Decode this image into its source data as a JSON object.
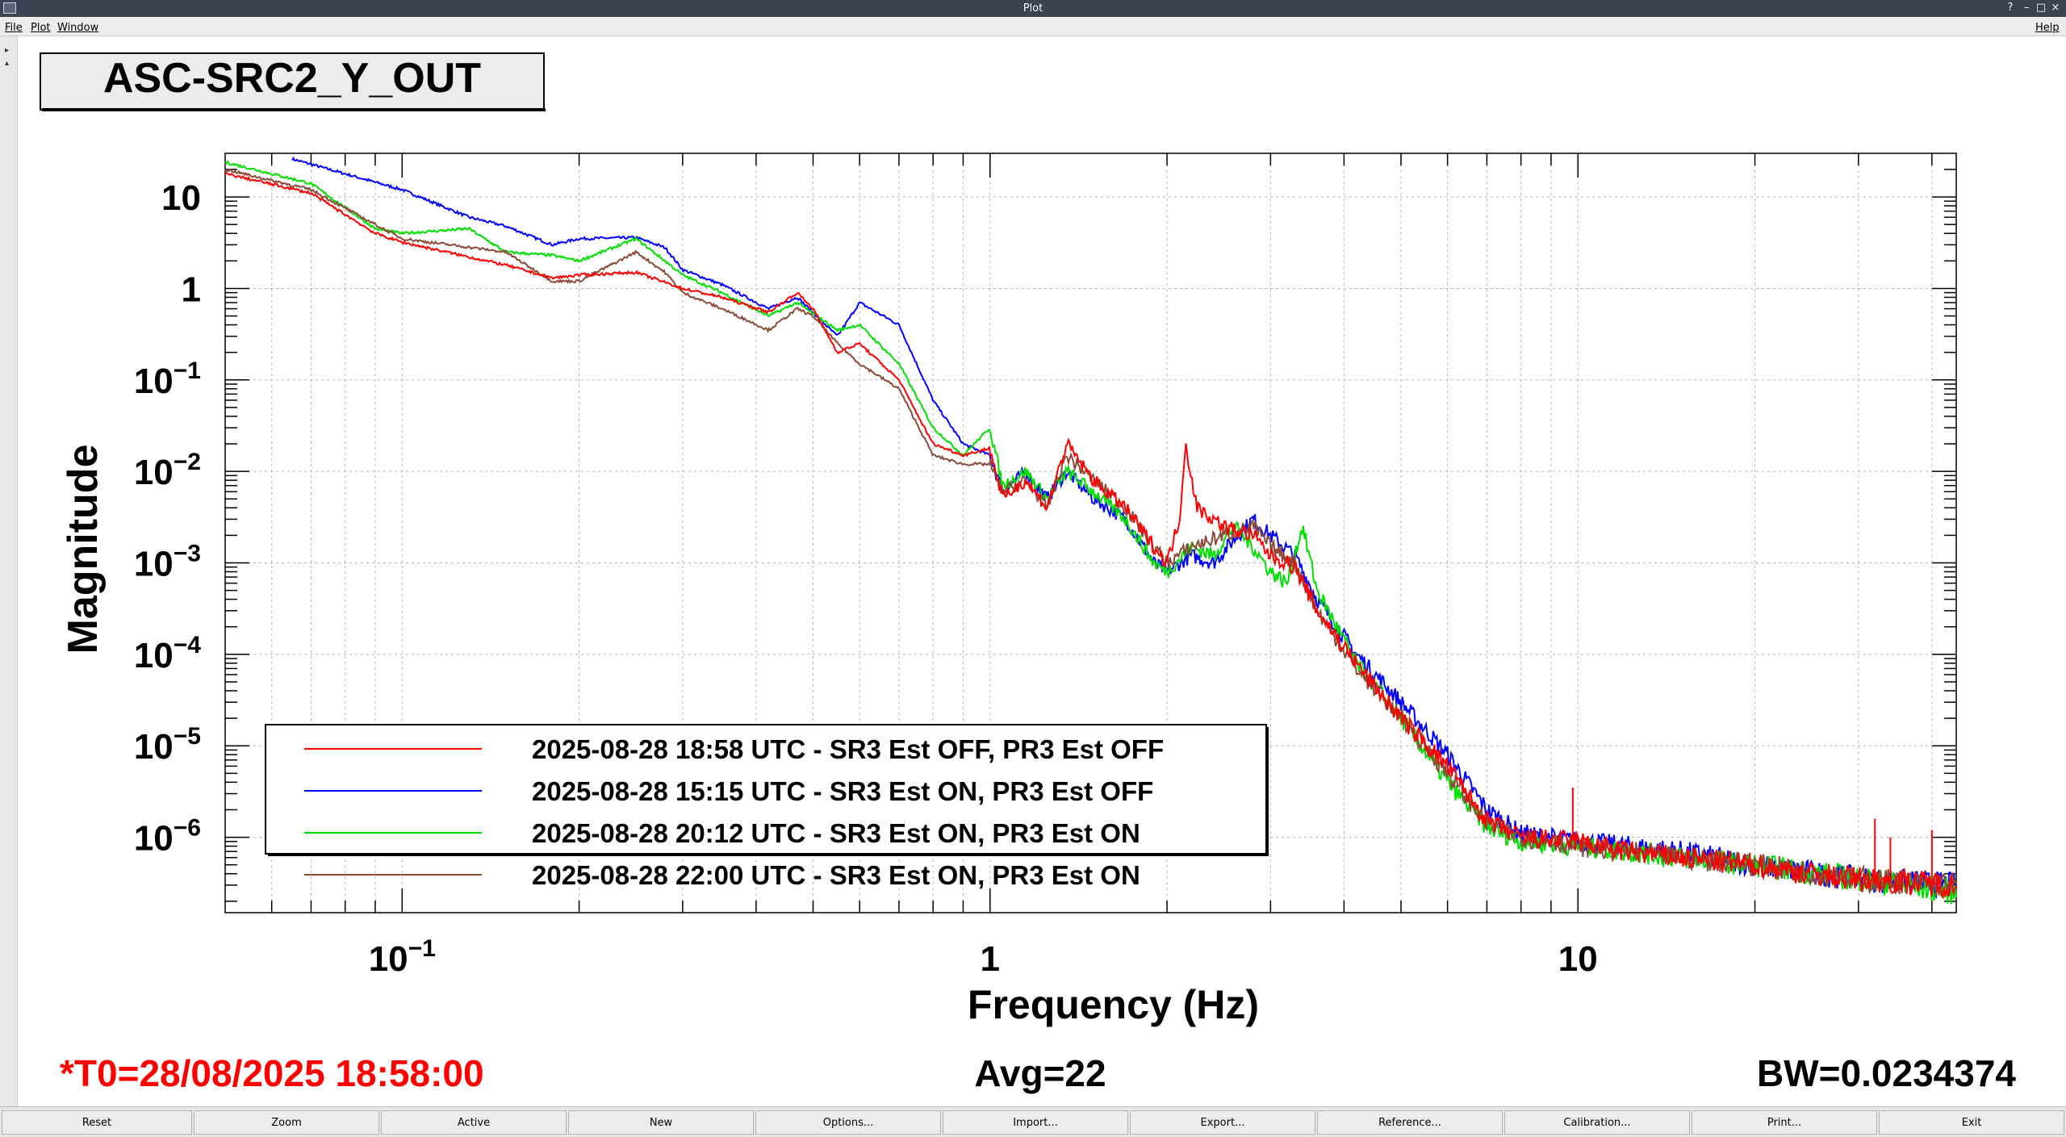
{
  "window": {
    "title": "Plot",
    "controls": [
      "?",
      "–",
      "□",
      "×"
    ]
  },
  "menu": {
    "items": [
      "File",
      "Plot",
      "Window"
    ],
    "help": "Help"
  },
  "panel": {
    "title": "ASC-SRC2_Y_OUT",
    "t0": "*T0=28/08/2025 18:58:00",
    "avg": "Avg=22",
    "bw": "BW=0.0234374"
  },
  "colors": {
    "red": "#ff0000",
    "blue": "#0000ff",
    "green": "#00e000",
    "brown": "#8b4a3a",
    "t0_text": "#ff0000"
  },
  "toolbar": {
    "buttons": [
      "Reset",
      "Zoom",
      "Active",
      "New",
      "Options...",
      "Import...",
      "Export...",
      "Reference...",
      "Calibration...",
      "Print...",
      "Exit"
    ]
  },
  "chart_data": {
    "type": "line",
    "title": "",
    "xlabel": "Frequency (Hz)",
    "ylabel": "Magnitude",
    "xscale": "log",
    "yscale": "log",
    "xlim": [
      0.05,
      44
    ],
    "ylim": [
      1.5e-07,
      30
    ],
    "grid": true,
    "legend_position": "lower-left",
    "x_tick_labels": [
      {
        "value": 0.1,
        "base": "10",
        "exp": "−1"
      },
      {
        "value": 1,
        "base": "1",
        "exp": ""
      },
      {
        "value": 10,
        "base": "10",
        "exp": ""
      }
    ],
    "y_tick_labels": [
      {
        "value": 10,
        "base": "10",
        "exp": ""
      },
      {
        "value": 1,
        "base": "1",
        "exp": ""
      },
      {
        "value": 0.1,
        "base": "10",
        "exp": "−1"
      },
      {
        "value": 0.01,
        "base": "10",
        "exp": "−2"
      },
      {
        "value": 0.001,
        "base": "10",
        "exp": "−3"
      },
      {
        "value": 0.0001,
        "base": "10",
        "exp": "−4"
      },
      {
        "value": 1e-05,
        "base": "10",
        "exp": "−5"
      },
      {
        "value": 1e-06,
        "base": "10",
        "exp": "−6"
      }
    ],
    "series": [
      {
        "name": "2025-08-28 18:58 UTC - SR3 Est OFF, PR3 Est OFF",
        "color": "#ff0000",
        "points": [
          [
            0.05,
            18
          ],
          [
            0.07,
            11
          ],
          [
            0.09,
            4
          ],
          [
            0.1,
            3.2
          ],
          [
            0.15,
            1.8
          ],
          [
            0.18,
            1.3
          ],
          [
            0.2,
            1.4
          ],
          [
            0.25,
            1.5
          ],
          [
            0.3,
            1.0
          ],
          [
            0.35,
            0.8
          ],
          [
            0.42,
            0.55
          ],
          [
            0.47,
            0.9
          ],
          [
            0.5,
            0.6
          ],
          [
            0.55,
            0.2
          ],
          [
            0.6,
            0.25
          ],
          [
            0.7,
            0.1
          ],
          [
            0.8,
            0.02
          ],
          [
            0.9,
            0.015
          ],
          [
            1.0,
            0.018
          ],
          [
            1.05,
            0.005
          ],
          [
            1.15,
            0.008
          ],
          [
            1.25,
            0.004
          ],
          [
            1.35,
            0.02
          ],
          [
            1.5,
            0.008
          ],
          [
            1.7,
            0.004
          ],
          [
            1.9,
            0.0015
          ],
          [
            2.0,
            0.001
          ],
          [
            2.1,
            0.003
          ],
          [
            2.15,
            0.02
          ],
          [
            2.25,
            0.004
          ],
          [
            2.5,
            0.0025
          ],
          [
            2.8,
            0.002
          ],
          [
            3.0,
            0.0012
          ],
          [
            3.3,
            0.0009
          ],
          [
            3.6,
            0.0003
          ],
          [
            4.2,
            8e-05
          ],
          [
            5.0,
            2e-05
          ],
          [
            6.0,
            6e-06
          ],
          [
            7.0,
            1.5e-06
          ],
          [
            8.0,
            1e-06
          ],
          [
            10.0,
            9e-07
          ],
          [
            12.0,
            7e-07
          ],
          [
            15.0,
            6e-07
          ],
          [
            20.0,
            5e-07
          ],
          [
            25.0,
            4e-07
          ],
          [
            30.0,
            3.5e-07
          ],
          [
            44.0,
            3e-07
          ]
        ],
        "spikes": [
          [
            9.8,
            3.5e-06
          ],
          [
            32.0,
            1.6e-06
          ],
          [
            34.0,
            1e-06
          ],
          [
            40.0,
            1.2e-06
          ]
        ]
      },
      {
        "name": "2025-08-28 15:15 UTC - SR3 Est ON, PR3 Est OFF",
        "color": "#0000ff",
        "points": [
          [
            0.065,
            26
          ],
          [
            0.1,
            12
          ],
          [
            0.13,
            6
          ],
          [
            0.15,
            4.8
          ],
          [
            0.18,
            3
          ],
          [
            0.2,
            3.5
          ],
          [
            0.25,
            3.6
          ],
          [
            0.28,
            2.8
          ],
          [
            0.3,
            1.6
          ],
          [
            0.35,
            1.1
          ],
          [
            0.42,
            0.6
          ],
          [
            0.47,
            0.8
          ],
          [
            0.55,
            0.3
          ],
          [
            0.6,
            0.7
          ],
          [
            0.7,
            0.4
          ],
          [
            0.8,
            0.06
          ],
          [
            0.9,
            0.02
          ],
          [
            1.0,
            0.015
          ],
          [
            1.05,
            0.006
          ],
          [
            1.15,
            0.01
          ],
          [
            1.25,
            0.005
          ],
          [
            1.35,
            0.01
          ],
          [
            1.5,
            0.005
          ],
          [
            1.7,
            0.003
          ],
          [
            1.9,
            0.001
          ],
          [
            2.0,
            0.0008
          ],
          [
            2.2,
            0.0012
          ],
          [
            2.4,
            0.001
          ],
          [
            2.6,
            0.0018
          ],
          [
            2.8,
            0.003
          ],
          [
            3.0,
            0.002
          ],
          [
            3.3,
            0.0012
          ],
          [
            3.6,
            0.0004
          ],
          [
            4.2,
            0.0001
          ],
          [
            5.0,
            3e-05
          ],
          [
            6.0,
            8e-06
          ],
          [
            7.0,
            2e-06
          ],
          [
            8.0,
            1.1e-06
          ],
          [
            10.0,
            9e-07
          ],
          [
            15.0,
            7e-07
          ],
          [
            20.0,
            5e-07
          ],
          [
            30.0,
            3.5e-07
          ],
          [
            44.0,
            3e-07
          ]
        ],
        "spikes": []
      },
      {
        "name": "2025-08-28 20:12 UTC - SR3 Est ON, PR3 Est ON",
        "color": "#00e000",
        "points": [
          [
            0.05,
            24
          ],
          [
            0.07,
            14
          ],
          [
            0.09,
            4.5
          ],
          [
            0.1,
            4
          ],
          [
            0.13,
            4.5
          ],
          [
            0.15,
            2.5
          ],
          [
            0.18,
            2.3
          ],
          [
            0.2,
            2.0
          ],
          [
            0.25,
            3.5
          ],
          [
            0.28,
            2.0
          ],
          [
            0.3,
            1.4
          ],
          [
            0.35,
            0.9
          ],
          [
            0.42,
            0.5
          ],
          [
            0.47,
            0.7
          ],
          [
            0.55,
            0.35
          ],
          [
            0.6,
            0.4
          ],
          [
            0.7,
            0.15
          ],
          [
            0.8,
            0.03
          ],
          [
            0.9,
            0.015
          ],
          [
            1.0,
            0.03
          ],
          [
            1.05,
            0.007
          ],
          [
            1.15,
            0.01
          ],
          [
            1.25,
            0.005
          ],
          [
            1.35,
            0.01
          ],
          [
            1.5,
            0.006
          ],
          [
            1.7,
            0.003
          ],
          [
            1.9,
            0.001
          ],
          [
            2.0,
            0.0008
          ],
          [
            2.2,
            0.0015
          ],
          [
            2.4,
            0.0012
          ],
          [
            2.6,
            0.0025
          ],
          [
            2.8,
            0.0015
          ],
          [
            3.0,
            0.0008
          ],
          [
            3.2,
            0.0006
          ],
          [
            3.4,
            0.0025
          ],
          [
            3.6,
            0.0005
          ],
          [
            4.2,
            8e-05
          ],
          [
            5.0,
            2e-05
          ],
          [
            6.0,
            4e-06
          ],
          [
            7.0,
            1.3e-06
          ],
          [
            8.0,
            9e-07
          ],
          [
            10.0,
            8e-07
          ],
          [
            15.0,
            6e-07
          ],
          [
            20.0,
            5e-07
          ],
          [
            30.0,
            3.5e-07
          ],
          [
            44.0,
            2.5e-07
          ]
        ],
        "spikes": []
      },
      {
        "name": "2025-08-28 22:00 UTC - SR3 Est ON, PR3 Est ON",
        "color": "#8b4a3a",
        "points": [
          [
            0.05,
            20
          ],
          [
            0.07,
            12
          ],
          [
            0.09,
            5
          ],
          [
            0.1,
            3.5
          ],
          [
            0.15,
            2.5
          ],
          [
            0.18,
            1.2
          ],
          [
            0.2,
            1.2
          ],
          [
            0.25,
            2.5
          ],
          [
            0.28,
            1.5
          ],
          [
            0.3,
            0.9
          ],
          [
            0.35,
            0.6
          ],
          [
            0.42,
            0.35
          ],
          [
            0.47,
            0.6
          ],
          [
            0.5,
            0.5
          ],
          [
            0.55,
            0.25
          ],
          [
            0.6,
            0.15
          ],
          [
            0.7,
            0.08
          ],
          [
            0.8,
            0.015
          ],
          [
            0.9,
            0.012
          ],
          [
            1.0,
            0.012
          ],
          [
            1.05,
            0.006
          ],
          [
            1.15,
            0.008
          ],
          [
            1.25,
            0.004
          ],
          [
            1.35,
            0.015
          ],
          [
            1.5,
            0.008
          ],
          [
            1.7,
            0.004
          ],
          [
            1.9,
            0.0015
          ],
          [
            2.0,
            0.001
          ],
          [
            2.2,
            0.0015
          ],
          [
            2.5,
            0.002
          ],
          [
            2.8,
            0.0025
          ],
          [
            3.0,
            0.0015
          ],
          [
            3.3,
            0.001
          ],
          [
            3.6,
            0.0003
          ],
          [
            4.2,
            7e-05
          ],
          [
            5.0,
            2e-05
          ],
          [
            6.0,
            5e-06
          ],
          [
            7.0,
            1.4e-06
          ],
          [
            8.0,
            1e-06
          ],
          [
            10.0,
            8e-07
          ],
          [
            15.0,
            6e-07
          ],
          [
            20.0,
            5e-07
          ],
          [
            30.0,
            3.5e-07
          ],
          [
            44.0,
            3e-07
          ]
        ],
        "spikes": []
      }
    ]
  }
}
